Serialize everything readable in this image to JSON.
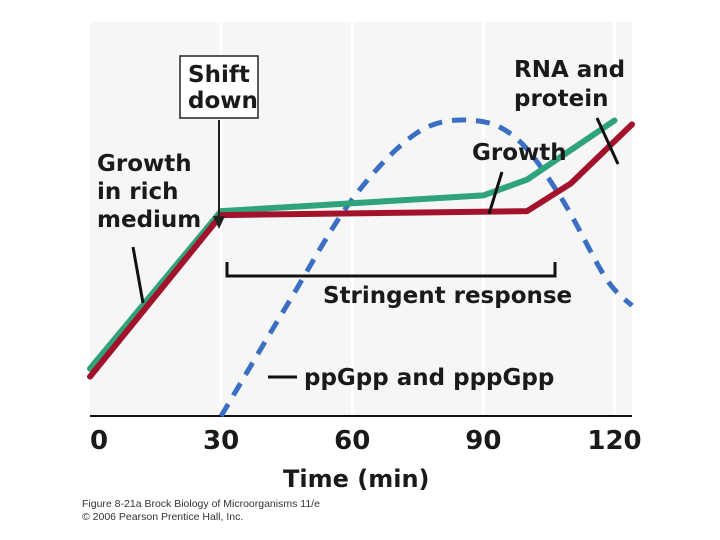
{
  "chart_data": {
    "type": "line",
    "xlabel": "Time (min)",
    "ylabel": "",
    "xlim": [
      0,
      124
    ],
    "ylim": [
      0,
      100
    ],
    "x_ticks": [
      "0",
      "30",
      "60",
      "90",
      "120"
    ],
    "x_tick_values": [
      0,
      30,
      60,
      90,
      120
    ],
    "grid": "vertical",
    "series": [
      {
        "name": "Growth",
        "color": "#2fa37a",
        "x": [
          0,
          30,
          90,
          100,
          120
        ],
        "values": [
          12,
          52,
          56,
          60,
          75
        ]
      },
      {
        "name": "RNA and protein",
        "color": "#a3122b",
        "x": [
          0,
          30,
          100,
          110,
          124
        ],
        "values": [
          10,
          51,
          52,
          59,
          74
        ]
      },
      {
        "name": "ppGpp and pppGpp",
        "color": "#3a6fc4",
        "x": [
          30,
          45,
          60,
          75,
          88,
          98,
          108,
          118,
          124
        ],
        "values": [
          0,
          28,
          55,
          72,
          75,
          70,
          55,
          35,
          28
        ]
      }
    ],
    "annotations": {
      "shift_down_line1": "Shift",
      "shift_down_line2": "down",
      "growth_rich_line1": "Growth",
      "growth_rich_line2": "in rich",
      "growth_rich_line3": "medium",
      "growth_label": "Growth",
      "rna_line1": "RNA and",
      "rna_line2": "protein",
      "stringent": "Stringent response",
      "ppgpp": "ppGpp and pppGpp"
    }
  },
  "credit": {
    "line1": "Figure 8-21a  Brock Biology of Microorganisms 11/e",
    "line2": "© 2006 Pearson Prentice Hall, Inc."
  }
}
